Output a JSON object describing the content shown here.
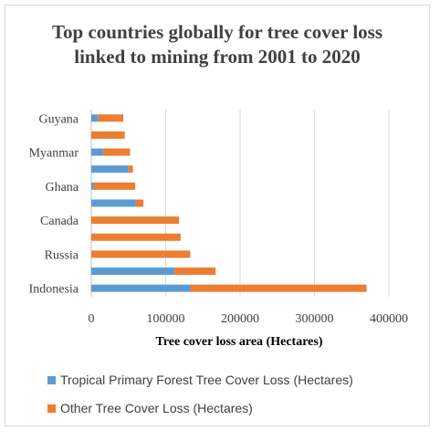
{
  "chart_data": {
    "type": "bar",
    "orientation": "horizontal",
    "stacked": true,
    "title": "Top countries globally for tree cover loss linked to mining from 2001 to 2020",
    "xlabel": "Tree cover loss area (Hectares)",
    "ylabel": "",
    "xlim": [
      0,
      400000
    ],
    "xticks": [
      0,
      100000,
      200000,
      300000,
      400000
    ],
    "xtick_labels": [
      "0",
      "100000",
      "200000",
      "300000",
      "400000"
    ],
    "grid": true,
    "legend_position": "bottom",
    "categories": [
      "Indonesia",
      "",
      "Russia",
      "",
      "Canada",
      "",
      "Ghana",
      "",
      "Myanmar",
      "",
      "Guyana"
    ],
    "series": [
      {
        "name": "Tropical Primary Forest Tree Cover Loss (Hectares)",
        "color": "#5b9bd5",
        "values": [
          133000,
          112000,
          0,
          0,
          0,
          60000,
          3000,
          50000,
          16000,
          0,
          9000
        ]
      },
      {
        "name": "Other Tree Cover Loss (Hectares)",
        "color": "#ed7d31",
        "values": [
          237000,
          55000,
          133000,
          120000,
          118000,
          10000,
          56000,
          6000,
          36000,
          45000,
          34000
        ]
      }
    ]
  }
}
